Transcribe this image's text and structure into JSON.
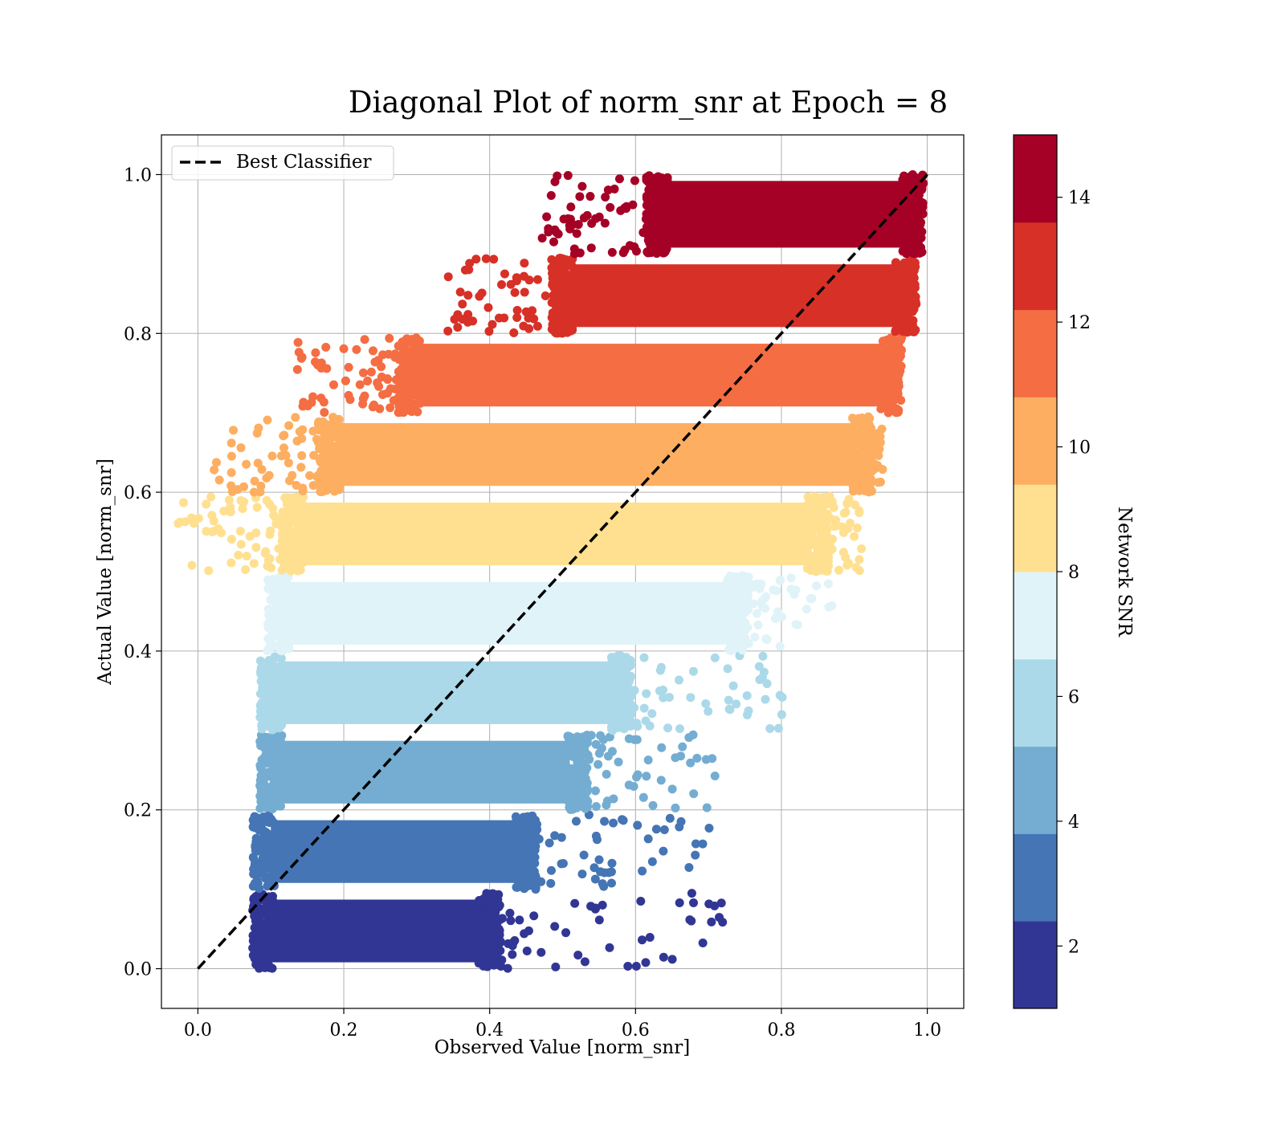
{
  "chart_data": {
    "type": "scatter",
    "title": "Diagonal Plot of norm_snr at Epoch = 8",
    "xlabel": "Observed Value [norm_snr]",
    "ylabel": "Actual Value [norm_snr]",
    "xlim": [
      -0.05,
      1.05
    ],
    "ylim": [
      -0.05,
      1.05
    ],
    "x_ticks": [
      "0.0",
      "0.2",
      "0.4",
      "0.6",
      "0.8",
      "1.0"
    ],
    "y_ticks": [
      "0.0",
      "0.2",
      "0.4",
      "0.6",
      "0.8",
      "1.0"
    ],
    "grid": true,
    "legend": {
      "placement": "upper-left",
      "entries": [
        "Best Classifier"
      ]
    },
    "reference_line": {
      "name": "Best Classifier",
      "x": [
        0,
        1
      ],
      "y": [
        0,
        1
      ],
      "style": "dashed",
      "color": "#000000"
    },
    "colorbar": {
      "label": "Network SNR",
      "range": [
        1,
        15
      ],
      "ticks": [
        "2",
        "4",
        "6",
        "8",
        "10",
        "12",
        "14"
      ],
      "colors": [
        "#313695",
        "#4575b4",
        "#74add1",
        "#abd9e9",
        "#e0f3f8",
        "#fee090",
        "#fdae61",
        "#f46d43",
        "#d73027",
        "#a50026"
      ]
    },
    "bands": [
      {
        "y_range": [
          0.0,
          0.1
        ],
        "x_core": [
          0.09,
          0.4
        ],
        "x_max": 0.72,
        "color": "#313695"
      },
      {
        "y_range": [
          0.1,
          0.2
        ],
        "x_core": [
          0.09,
          0.45
        ],
        "x_max": 0.71,
        "color": "#4575b4"
      },
      {
        "y_range": [
          0.2,
          0.3
        ],
        "x_core": [
          0.1,
          0.52
        ],
        "x_max": 0.73,
        "color": "#74add1"
      },
      {
        "y_range": [
          0.3,
          0.4
        ],
        "x_core": [
          0.1,
          0.58
        ],
        "x_max": 0.81,
        "color": "#abd9e9"
      },
      {
        "y_range": [
          0.4,
          0.5
        ],
        "x_core": [
          0.11,
          0.74
        ],
        "x_max": 0.87,
        "color": "#e0f3f8"
      },
      {
        "y_range": [
          0.5,
          0.6
        ],
        "x_core": [
          0.13,
          0.85
        ],
        "x_max": 0.91,
        "color": "#fee090"
      },
      {
        "y_range": [
          0.6,
          0.7
        ],
        "x_core": [
          0.18,
          0.91
        ],
        "x_max": 0.94,
        "color": "#fdae61"
      },
      {
        "y_range": [
          0.7,
          0.8
        ],
        "x_core": [
          0.29,
          0.95
        ],
        "x_max": 0.96,
        "color": "#f46d43"
      },
      {
        "y_range": [
          0.8,
          0.9
        ],
        "x_core": [
          0.5,
          0.97
        ],
        "x_max": 0.98,
        "color": "#d73027"
      },
      {
        "y_range": [
          0.9,
          1.0
        ],
        "x_core": [
          0.63,
          0.98
        ],
        "x_max": 0.98,
        "color": "#a50026"
      }
    ]
  }
}
